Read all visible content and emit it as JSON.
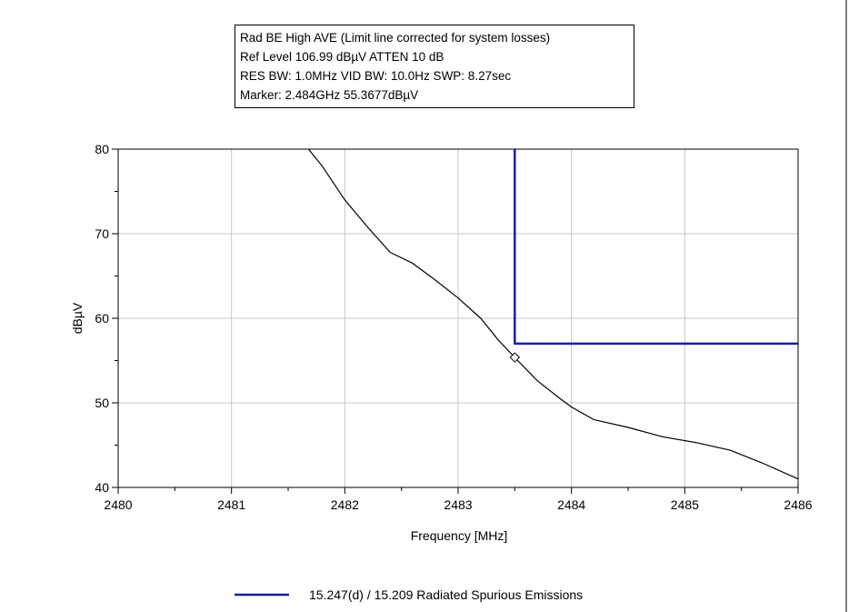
{
  "info_box": {
    "line1": "Rad BE High AVE (Limit line corrected for system losses)",
    "line2": "Ref Level 106.99 dBµV    ATTEN 10 dB",
    "line3": "RES BW: 1.0MHz  VID BW: 10.0Hz  SWP: 8.27sec",
    "line4": "Marker: 2.484GHz  55.3677dBµV"
  },
  "chart_data": {
    "type": "line",
    "xlabel": "Frequency [MHz]",
    "ylabel": "dBµV",
    "xlim": [
      2480,
      2486
    ],
    "ylim": [
      40,
      80
    ],
    "x_ticks": [
      2480,
      2481,
      2482,
      2483,
      2484,
      2485,
      2486
    ],
    "y_ticks": [
      40,
      50,
      60,
      70,
      80
    ],
    "grid": true,
    "legend_position": "bottom-center",
    "series": [
      {
        "color": "#000000",
        "points": [
          [
            2481.68,
            80.0
          ],
          [
            2481.8,
            78.0
          ],
          [
            2482.0,
            74.0
          ],
          [
            2482.2,
            70.8
          ],
          [
            2482.4,
            67.8
          ],
          [
            2482.6,
            66.5
          ],
          [
            2482.8,
            64.5
          ],
          [
            2483.0,
            62.4
          ],
          [
            2483.2,
            60.0
          ],
          [
            2483.35,
            57.5
          ],
          [
            2483.5,
            55.37
          ],
          [
            2483.7,
            52.6
          ],
          [
            2483.9,
            50.5
          ],
          [
            2484.0,
            49.5
          ],
          [
            2484.2,
            48.0
          ],
          [
            2484.5,
            47.1
          ],
          [
            2484.8,
            46.0
          ],
          [
            2485.1,
            45.3
          ],
          [
            2485.4,
            44.4
          ],
          [
            2485.7,
            42.8
          ],
          [
            2486.0,
            41.0
          ]
        ]
      },
      {
        "name": "15.247(d) / 15.209 Radiated Spurious Emissions",
        "color": "#1b1bb0",
        "points": [
          [
            2483.5,
            80.0
          ],
          [
            2483.5,
            57.0
          ],
          [
            2486.0,
            57.0
          ]
        ]
      }
    ],
    "marker": {
      "x": 2483.5,
      "y": 55.37
    }
  }
}
